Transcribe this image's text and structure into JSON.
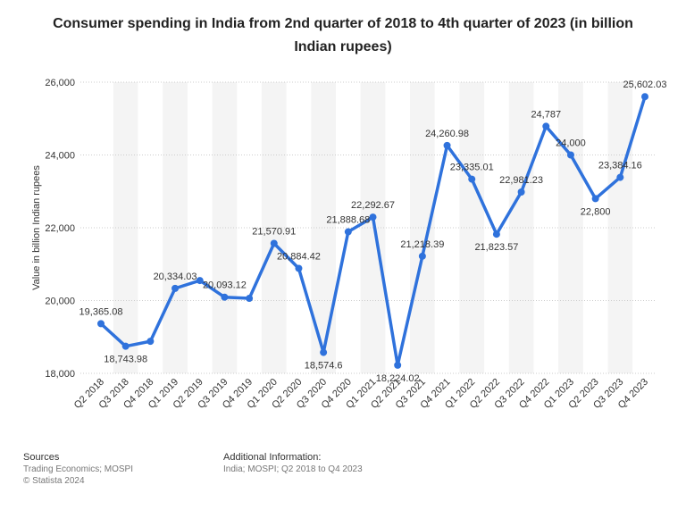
{
  "chart_data": {
    "type": "line",
    "title": "Consumer spending in India from 2nd quarter of 2018 to 4th quarter of 2023 (in billion Indian rupees)",
    "y_label": "Value in billion Indian rupees",
    "categories": [
      "Q2 2018",
      "Q3 2018",
      "Q4 2018",
      "Q1 2019",
      "Q2 2019",
      "Q3 2019",
      "Q4 2019",
      "Q1 2020",
      "Q2 2020",
      "Q3 2020",
      "Q4 2020",
      "Q1 2021",
      "Q2 2021",
      "Q3 2021",
      "Q4 2021",
      "Q1 2022",
      "Q2 2022",
      "Q3 2022",
      "Q4 2022",
      "Q1 2023",
      "Q2 2023",
      "Q3 2023",
      "Q4 2023"
    ],
    "values": [
      19365.08,
      18743.98,
      18880,
      20334.03,
      20550,
      20093.12,
      20060,
      21570.91,
      20884.42,
      18574.6,
      21888.68,
      22292.67,
      18224.02,
      21218.39,
      24260.98,
      23335.01,
      21823.57,
      22981.23,
      24787,
      24000,
      22800,
      23384.16,
      25602.03
    ],
    "value_labels": [
      "19,365.08",
      "18,743.98",
      null,
      "20,334.03",
      null,
      "20,093.12",
      null,
      "21,570.91",
      "20,884.42",
      "18,574.6",
      "21,888.68",
      "22,292.67",
      "18,224.02",
      "21,218.39",
      "24,260.98",
      "23,335.01",
      "21,823.57",
      "22,981.23",
      "24,787",
      "24,000",
      "22,800",
      "23,384.16",
      "25,602.03"
    ],
    "color": "#2f72dc",
    "ylim": [
      18000,
      26000
    ],
    "yticks": [
      {
        "value": 18000,
        "label": "18,000"
      },
      {
        "value": 20000,
        "label": "20,000"
      },
      {
        "value": 22000,
        "label": "22,000"
      },
      {
        "value": 24000,
        "label": "24,000"
      },
      {
        "value": 26000,
        "label": "26,000"
      }
    ],
    "grid": true
  },
  "footer": {
    "sources_title": "Sources",
    "sources": "Trading Economics; MOSPI",
    "copyright": "© Statista 2024",
    "info_title": "Additional Information:",
    "info": "India; MOSPI; Q2 2018 to Q4 2023"
  }
}
